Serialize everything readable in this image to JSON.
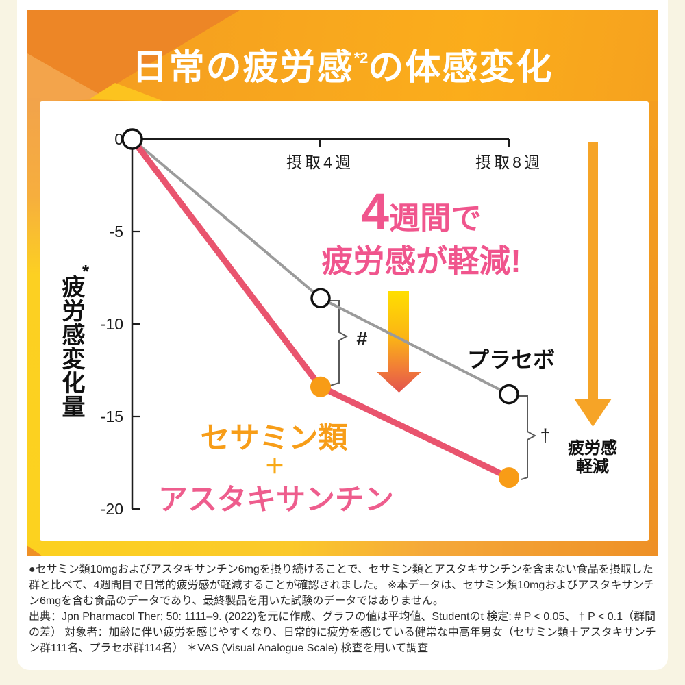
{
  "page": {
    "title_pre": "日常の疲労感",
    "title_sup": "*2",
    "title_post": "の体感変化"
  },
  "chart": {
    "y_axis_title": "疲労感変化量",
    "y_axis_note": "*",
    "annotations": {
      "headline_big": "4",
      "headline_rest": "週間で",
      "headline_line2": "疲労感が軽減!",
      "placebo_label": "プラセボ",
      "sig_hash": "#",
      "sig_dagger": "†",
      "series_label_1": "セサミン類",
      "series_label_plus": "＋",
      "series_label_2": "アスタキサンチン",
      "reduction_label": "疲労感\n軽減"
    }
  },
  "chart_data": {
    "type": "line",
    "x": [
      0,
      4,
      8
    ],
    "x_unit": "weeks",
    "xtick_labels": [
      "摂取4週",
      "摂取8週"
    ],
    "ylabel": "疲労感変化量",
    "yticks": [
      0,
      -5,
      -10,
      -15,
      -20
    ],
    "ylim": [
      0,
      -20
    ],
    "grid": false,
    "series": [
      {
        "name": "プラセボ",
        "values": [
          0,
          -8.6,
          -13.8
        ],
        "color": "#9b9b9b",
        "line_width": 4,
        "marker": "open-circle"
      },
      {
        "name": "セサミン類＋アスタキサンチン",
        "values": [
          0,
          -13.4,
          -18.3
        ],
        "color": "#e9546e",
        "line_width": 9,
        "marker": "filled-orange",
        "marker_color": "#f89c16"
      }
    ],
    "significance": [
      {
        "symbol": "#",
        "at": "摂取4週",
        "meaning": "P < 0.05"
      },
      {
        "symbol": "†",
        "at": "摂取8週",
        "meaning": "P < 0.1"
      }
    ]
  },
  "colors": {
    "accent_pink": "#f0558d",
    "accent_orange": "#f79d18",
    "arrow_orange": "#f6a427",
    "header_orange": "#f8a71e"
  },
  "footer": {
    "note1": "●セサミン類10mgおよびアスタキサンチン6mgを摂り続けることで、セサミン類とアスタキサンチンを含まない食品を摂取した群と比べて、4週間目で日常的疲労感が軽減することが確認されました。 ※本データは、セサミン類10mgおよびアスタキサンチン6mgを含む食品のデータであり、最終製品を用いた試験のデータではありません。",
    "note2": "出典：Jpn Pharmacol Ther; 50: 1111–9. (2022)を元に作成、グラフの値は平均値、Studentのt 検定: # P < 0.05、 † P < 0.1（群間の差） 対象者：加齢に伴い疲労を感じやすくなり、日常的に疲労を感じている健常な中高年男女（セサミン類＋アスタキサンチン群111名、プラセボ群114名） ＊VAS (Visual Analogue Scale) 検査を用いて調査"
  }
}
